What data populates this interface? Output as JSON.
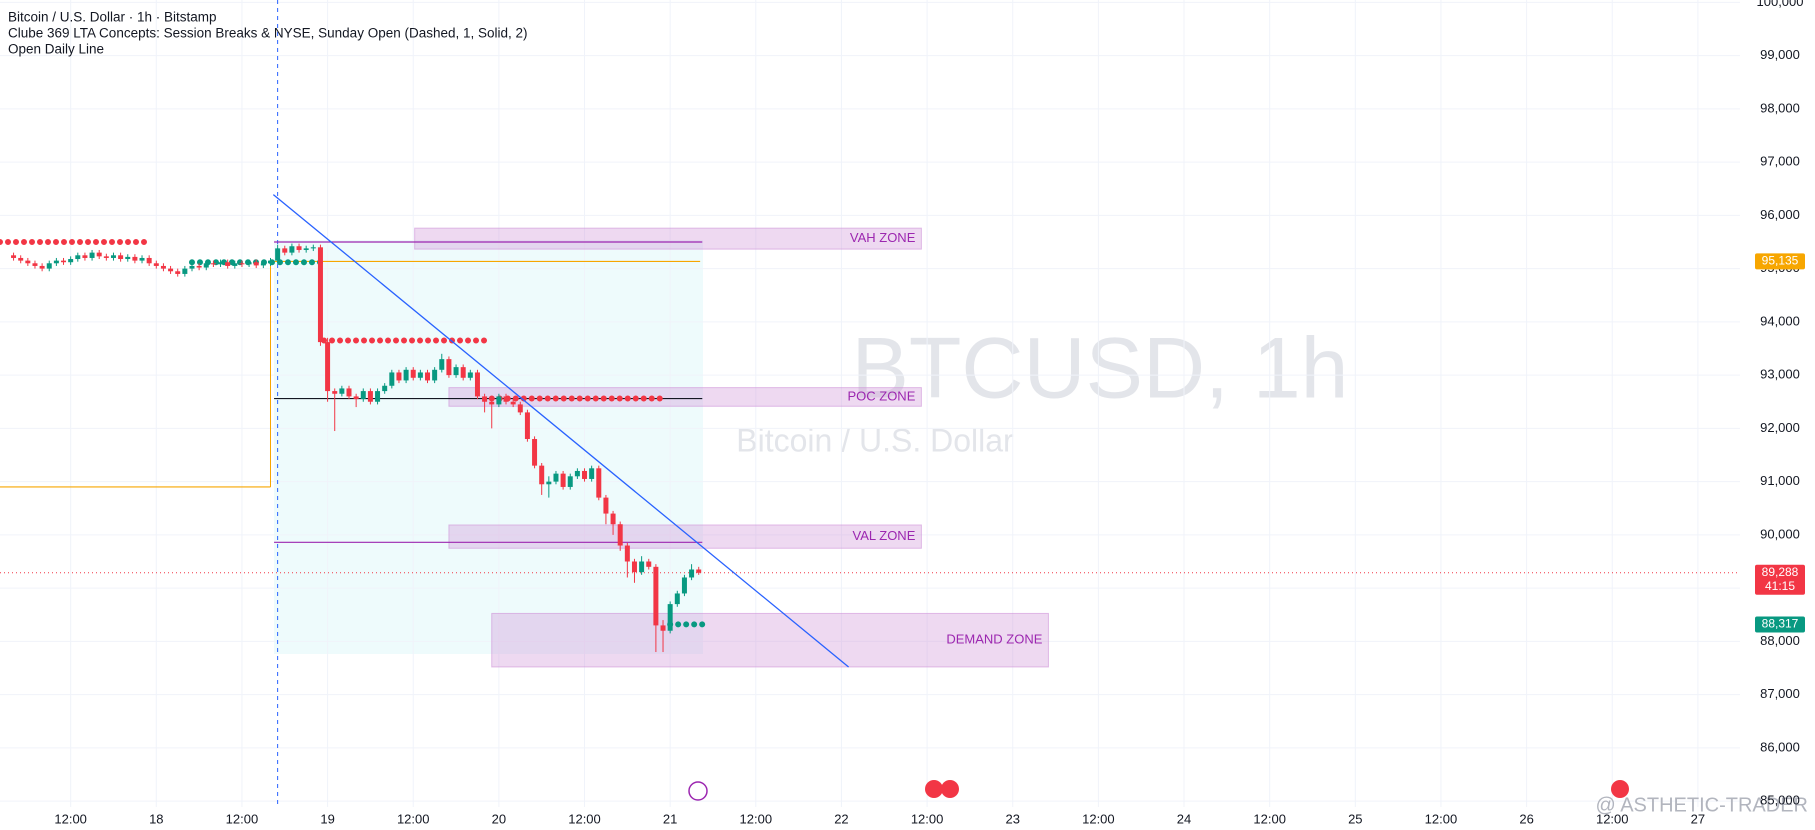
{
  "chart_data": {
    "type": "candlestick",
    "title": "Bitcoin / U.S. Dollar · 1h · Bitstamp",
    "indicator_lines": [
      "Clube 369 LTA Concepts: Session Breaks & NYSE, Sunday Open (Dashed, 1, Solid, 2)",
      "Open Daily Line"
    ],
    "watermark": [
      "BTCUSD, 1h",
      "Bitcoin / U.S. Dollar"
    ],
    "credit": "@ ASTHETIC-TRADER",
    "up_color": "#089981",
    "down_color": "#f23645",
    "grid": true,
    "xlim": [
      2.1,
      245.9
    ],
    "ylim": [
      84890,
      100044
    ],
    "xticks": [
      {
        "value": 12,
        "label": "12:00"
      },
      {
        "value": 24,
        "label": "18"
      },
      {
        "value": 36,
        "label": "12:00"
      },
      {
        "value": 48,
        "label": "19"
      },
      {
        "value": 60,
        "label": "12:00"
      },
      {
        "value": 72,
        "label": "20"
      },
      {
        "value": 84,
        "label": "12:00"
      },
      {
        "value": 96,
        "label": "21"
      },
      {
        "value": 108,
        "label": "12:00"
      },
      {
        "value": 120,
        "label": "22"
      },
      {
        "value": 132,
        "label": "12:00"
      },
      {
        "value": 144,
        "label": "23"
      },
      {
        "value": 156,
        "label": "12:00"
      },
      {
        "value": 168,
        "label": "24"
      },
      {
        "value": 180,
        "label": "12:00"
      },
      {
        "value": 192,
        "label": "25"
      },
      {
        "value": 204,
        "label": "12:00"
      },
      {
        "value": 216,
        "label": "26"
      },
      {
        "value": 228,
        "label": "12:00"
      },
      {
        "value": 240,
        "label": "27"
      }
    ],
    "yticks": [
      {
        "value": 85000,
        "label": "85,000"
      },
      {
        "value": 86000,
        "label": "86,000"
      },
      {
        "value": 87000,
        "label": "87,000"
      },
      {
        "value": 88000,
        "label": "88,000"
      },
      {
        "value": 89000,
        "label": "89,000"
      },
      {
        "value": 90000,
        "label": "90,000"
      },
      {
        "value": 91000,
        "label": "91,000"
      },
      {
        "value": 92000,
        "label": "92,000"
      },
      {
        "value": 93000,
        "label": "93,000"
      },
      {
        "value": 94000,
        "label": "94,000"
      },
      {
        "value": 95000,
        "label": "95,000"
      },
      {
        "value": 96000,
        "label": "96,000"
      },
      {
        "value": 97000,
        "label": "97,000"
      },
      {
        "value": 98000,
        "label": "98,000"
      },
      {
        "value": 99000,
        "label": "99,000"
      },
      {
        "value": 100000,
        "label": "100,000"
      }
    ],
    "x": [
      4,
      5,
      6,
      7,
      8,
      9,
      10,
      11,
      12,
      13,
      14,
      15,
      16,
      17,
      18,
      19,
      20,
      21,
      22,
      23,
      24,
      25,
      26,
      27,
      28,
      29,
      30,
      31,
      32,
      33,
      34,
      35,
      36,
      37,
      38,
      39,
      40,
      41,
      42,
      43,
      44,
      45,
      46,
      47,
      48,
      49,
      50,
      51,
      52,
      53,
      54,
      55,
      56,
      57,
      58,
      59,
      60,
      61,
      62,
      63,
      64,
      65,
      66,
      67,
      68,
      69,
      70,
      71,
      72,
      73,
      74,
      75,
      76,
      77,
      78,
      79,
      80,
      81,
      82,
      83,
      84,
      85,
      86,
      87,
      88,
      89,
      90,
      91,
      92,
      93,
      94,
      95,
      96,
      97,
      98,
      99,
      100
    ],
    "candles": [
      [
        95250,
        95300,
        95150,
        95200
      ],
      [
        95200,
        95250,
        95100,
        95150
      ],
      [
        95150,
        95200,
        95050,
        95100
      ],
      [
        95100,
        95150,
        95000,
        95050
      ],
      [
        95050,
        95100,
        94950,
        95000
      ],
      [
        95000,
        95150,
        94950,
        95100
      ],
      [
        95100,
        95200,
        95050,
        95150
      ],
      [
        95150,
        95200,
        95070,
        95120
      ],
      [
        95120,
        95230,
        95070,
        95180
      ],
      [
        95180,
        95300,
        95130,
        95250
      ],
      [
        95250,
        95300,
        95150,
        95200
      ],
      [
        95200,
        95350,
        95150,
        95300
      ],
      [
        95300,
        95350,
        95180,
        95230
      ],
      [
        95230,
        95280,
        95150,
        95200
      ],
      [
        95200,
        95300,
        95150,
        95250
      ],
      [
        95250,
        95300,
        95130,
        95180
      ],
      [
        95180,
        95270,
        95130,
        95220
      ],
      [
        95220,
        95270,
        95100,
        95150
      ],
      [
        95150,
        95250,
        95100,
        95200
      ],
      [
        95200,
        95250,
        95050,
        95100
      ],
      [
        95100,
        95150,
        95000,
        95050
      ],
      [
        95050,
        95100,
        94950,
        95000
      ],
      [
        95000,
        95050,
        94900,
        94950
      ],
      [
        94950,
        95000,
        94850,
        94900
      ],
      [
        94900,
        95050,
        94850,
        95000
      ],
      [
        95000,
        95100,
        94950,
        95050
      ],
      [
        95050,
        95100,
        94970,
        95020
      ],
      [
        95020,
        95150,
        94970,
        95100
      ],
      [
        95100,
        95150,
        95030,
        95080
      ],
      [
        95080,
        95170,
        95030,
        95120
      ],
      [
        95120,
        95170,
        95000,
        95050
      ],
      [
        95050,
        95150,
        95000,
        95100
      ],
      [
        95100,
        95150,
        95030,
        95080
      ],
      [
        95080,
        95170,
        95030,
        95120
      ],
      [
        95120,
        95170,
        95010,
        95060
      ],
      [
        95060,
        95150,
        95010,
        95100
      ],
      [
        95100,
        95200,
        95050,
        95150
      ],
      [
        95150,
        95450,
        95100,
        95380
      ],
      [
        95380,
        95430,
        95250,
        95300
      ],
      [
        95300,
        95470,
        95250,
        95420
      ],
      [
        95420,
        95470,
        95300,
        95350
      ],
      [
        95350,
        95430,
        95300,
        95380
      ],
      [
        95380,
        95450,
        95330,
        95400
      ],
      [
        95400,
        95450,
        93550,
        93620
      ],
      [
        93620,
        93700,
        92500,
        92700
      ],
      [
        92700,
        92750,
        91950,
        92650
      ],
      [
        92650,
        92800,
        92600,
        92750
      ],
      [
        92750,
        92800,
        92550,
        92600
      ],
      [
        92600,
        92650,
        92400,
        92550
      ],
      [
        92550,
        92750,
        92500,
        92700
      ],
      [
        92700,
        92750,
        92450,
        92500
      ],
      [
        92500,
        92750,
        92450,
        92700
      ],
      [
        92700,
        92850,
        92650,
        92800
      ],
      [
        92800,
        93100,
        92750,
        93050
      ],
      [
        93050,
        93100,
        92850,
        92900
      ],
      [
        92900,
        93150,
        92850,
        93100
      ],
      [
        93100,
        93150,
        92900,
        92950
      ],
      [
        92950,
        93100,
        92900,
        93050
      ],
      [
        93050,
        93100,
        92850,
        92900
      ],
      [
        92900,
        93150,
        92850,
        93100
      ],
      [
        93100,
        93400,
        93050,
        93300
      ],
      [
        93300,
        93350,
        92950,
        93000
      ],
      [
        93000,
        93200,
        92950,
        93150
      ],
      [
        93150,
        93200,
        92900,
        92950
      ],
      [
        92950,
        93100,
        92900,
        93050
      ],
      [
        93050,
        93100,
        92550,
        92600
      ],
      [
        92600,
        92650,
        92300,
        92500
      ],
      [
        92500,
        92550,
        92000,
        92450
      ],
      [
        92450,
        92650,
        92400,
        92600
      ],
      [
        92600,
        92650,
        92450,
        92500
      ],
      [
        92500,
        92550,
        92400,
        92450
      ],
      [
        92450,
        92500,
        92250,
        92300
      ],
      [
        92300,
        92350,
        91750,
        91800
      ],
      [
        91800,
        91850,
        91250,
        91300
      ],
      [
        91300,
        91350,
        90750,
        90950
      ],
      [
        90950,
        91100,
        90700,
        91000
      ],
      [
        91000,
        91200,
        90950,
        91150
      ],
      [
        91150,
        91200,
        90850,
        90900
      ],
      [
        90900,
        91150,
        90850,
        91100
      ],
      [
        91100,
        91250,
        91050,
        91200
      ],
      [
        91200,
        91250,
        91000,
        91050
      ],
      [
        91050,
        91300,
        91000,
        91250
      ],
      [
        91250,
        91300,
        90650,
        90700
      ],
      [
        90700,
        90750,
        90200,
        90400
      ],
      [
        90400,
        90450,
        90000,
        90200
      ],
      [
        90200,
        90250,
        89700,
        89800
      ],
      [
        89800,
        89850,
        89200,
        89500
      ],
      [
        89500,
        89550,
        89100,
        89300
      ],
      [
        89300,
        89600,
        89250,
        89500
      ],
      [
        89500,
        89550,
        89350,
        89400
      ],
      [
        89400,
        89450,
        87800,
        88300
      ],
      [
        88300,
        88400,
        87800,
        88200
      ],
      [
        88200,
        88750,
        88150,
        88700
      ],
      [
        88700,
        88950,
        88650,
        88900
      ],
      [
        88900,
        89250,
        88850,
        89200
      ],
      [
        89200,
        89450,
        89150,
        89350
      ],
      [
        89350,
        89400,
        89250,
        89288
      ]
    ],
    "zones": [
      {
        "label": "VAH ZONE",
        "x": [
          60.2,
          131.2
        ],
        "y": [
          95366,
          95760
        ]
      },
      {
        "label": "POC ZONE",
        "x": [
          65,
          131.2
        ],
        "y": [
          92415,
          92765
        ]
      },
      {
        "label": "VAL ZONE",
        "x": [
          65,
          131.2
        ],
        "y": [
          89749,
          90186
        ]
      },
      {
        "label": "DEMAND ZONE",
        "x": [
          71,
          149
        ],
        "y": [
          87520,
          88525
        ]
      }
    ],
    "levels": [
      {
        "price": 95135,
        "x": [
          40.5,
          100.2
        ],
        "color": "#f7a600",
        "style": "solid"
      },
      {
        "price": 95500,
        "x": [
          40.5,
          100.5
        ],
        "color": "#9c27b0",
        "style": "solid"
      },
      {
        "price": 89860,
        "x": [
          40.5,
          100.5
        ],
        "color": "#9c27b0",
        "style": "solid"
      },
      {
        "price": 92560,
        "x": [
          40.5,
          100.5
        ],
        "color": "#131722",
        "style": "solid"
      },
      {
        "price": 90900,
        "x": [
          2.1,
          40
        ],
        "color": "#f7a600",
        "style": "solid"
      },
      {
        "price": 95500,
        "x": [
          2.1,
          23
        ],
        "color": "#f23645",
        "style": "dots"
      },
      {
        "price": 95120,
        "x": [
          29,
          47
        ],
        "color": "#089981",
        "style": "dots"
      },
      {
        "price": 93650,
        "x": [
          47.5,
          71
        ],
        "color": "#f23645",
        "style": "dots"
      },
      {
        "price": 92560,
        "x": [
          71,
          95
        ],
        "color": "#f23645",
        "style": "dots"
      },
      {
        "price": 88320,
        "x": [
          96,
          100.5
        ],
        "color": "#089981",
        "style": "dots"
      }
    ],
    "trendline": {
      "x": [
        40.4,
        121
      ],
      "y": [
        96390,
        87520
      ],
      "color": "#2962ff"
    },
    "session_break": 41,
    "last_price": 89288,
    "price_labels": [
      {
        "value": 95135,
        "label": "95,135",
        "color": "#f7a600"
      },
      {
        "value": 89288,
        "label": "89,288",
        "sublabel": "41:15",
        "color": "#f23645"
      },
      {
        "value": 88317,
        "label": "88,317",
        "color": "#089981"
      }
    ]
  }
}
